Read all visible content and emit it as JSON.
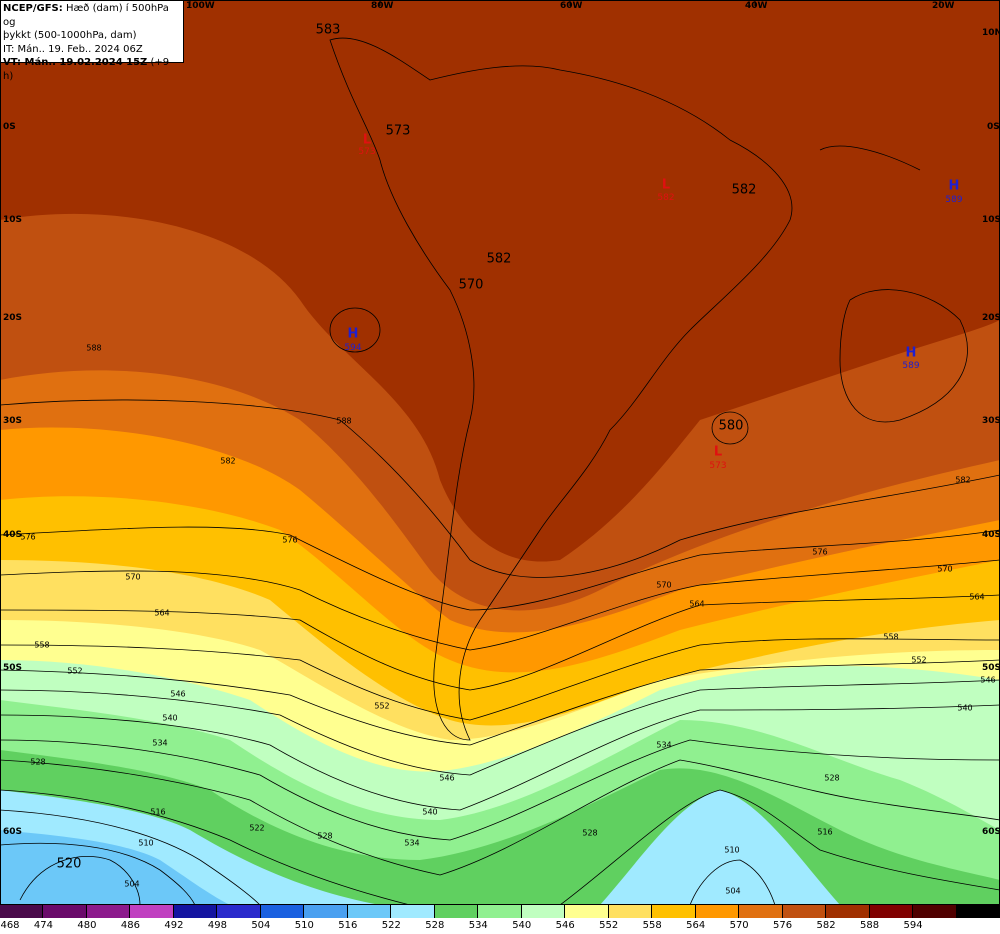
{
  "header": {
    "model_prefix": "NCEP/GFS:",
    "model_title": " Hæð (dam) í 500hPa og",
    "subtitle": "þykkt (500-1000hPa, dam)",
    "init_time": "IT: Mán.. 19. Feb.. 2024 06Z",
    "valid_prefix": "VT: Mán.. 19.02.2024 15Z",
    "valid_suffix": " (+9 h)"
  },
  "axes": {
    "lon_labels": [
      "100W",
      "80W",
      "60W",
      "40W",
      "20W"
    ],
    "lat_labels": [
      "10N",
      "0S",
      "10S",
      "20S",
      "30S",
      "40S",
      "50S",
      "60S"
    ]
  },
  "colorbar": {
    "labels": [
      "468",
      "474",
      "480",
      "486",
      "492",
      "498",
      "504",
      "510",
      "516",
      "522",
      "528",
      "534",
      "540",
      "546",
      "552",
      "558",
      "564",
      "570",
      "576",
      "582",
      "588",
      "594"
    ],
    "colors": [
      "#4a0a4a",
      "#6a0a6a",
      "#8c1a8c",
      "#c040c0",
      "#1414a0",
      "#2a2acc",
      "#1a60e0",
      "#4aa0f0",
      "#6cc8f8",
      "#a0eaff",
      "#60d060",
      "#90f090",
      "#c0ffc0",
      "#ffff90",
      "#ffe060",
      "#ffc000",
      "#ff9800",
      "#e07010",
      "#c05010",
      "#a03000",
      "#800000",
      "#500000",
      "#000000"
    ]
  },
  "centers": [
    {
      "type": "L",
      "value": "573",
      "lon": "80W",
      "lat": "3S"
    },
    {
      "type": "L",
      "value": "582",
      "lon": "50W",
      "lat": "7S"
    },
    {
      "type": "H",
      "value": "589",
      "lon": "22W",
      "lat": "7S"
    },
    {
      "type": "H",
      "value": "594",
      "lon": "90W",
      "lat": "21S"
    },
    {
      "type": "H",
      "value": "589",
      "lon": "25W",
      "lat": "23S"
    },
    {
      "type": "L",
      "value": "573",
      "lon": "42W",
      "lat": "33S"
    }
  ],
  "height_labels": [
    "583",
    "573",
    "582",
    "582",
    "570",
    "580",
    "520"
  ],
  "contour_labels": [
    "588",
    "582",
    "576",
    "570",
    "564",
    "558",
    "552",
    "546",
    "540",
    "534",
    "528",
    "522",
    "516",
    "510",
    "504"
  ],
  "colors": {
    "frame": "#000000",
    "high_color": "#2020d0",
    "low_color": "#e01010"
  }
}
